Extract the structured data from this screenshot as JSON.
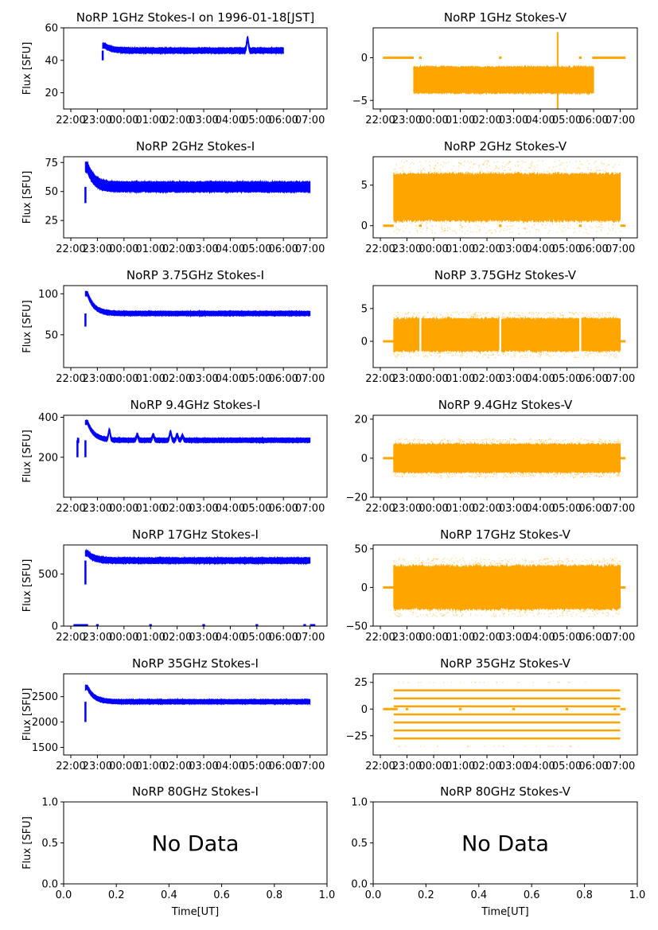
{
  "chart_data": {
    "type": "scatter",
    "layout": "7 rows x 2 columns grid of time series panels",
    "date_label": "1996-01-18[JST]",
    "x_tick_labels": [
      "22:00",
      "23:00",
      "00:00",
      "01:00",
      "02:00",
      "03:00",
      "04:00",
      "05:00",
      "06:00",
      "07:00"
    ],
    "x_range_hours_from_2200": [
      -0.27,
      9.64
    ],
    "xlabel": "Time[UT]",
    "ylabel": "Flux [SFU]",
    "colors": {
      "stokes_i": "#0000ff",
      "stokes_v": "#ffa500"
    },
    "panels": [
      {
        "id": "1ghz-i",
        "title": "NoRP 1GHz Stokes-I on 1996-01-18[JST]",
        "ylim": [
          10,
          60
        ],
        "yticks": [
          20,
          40,
          60
        ],
        "kind": "I",
        "segments": [
          [
            1.2,
            8.0
          ]
        ],
        "base": 46,
        "spread": 1.5,
        "start_dip": 40,
        "peak": 49,
        "bumps": [
          [
            6.65,
            53
          ]
        ],
        "zero_marks": []
      },
      {
        "id": "1ghz-v",
        "title": "NoRP 1GHz Stokes-V",
        "ylim": [
          -6,
          3.5
        ],
        "yticks": [
          -5,
          0
        ],
        "kind": "V",
        "segments": [
          [
            1.25,
            8.0
          ]
        ],
        "base": -2.6,
        "spread": 1.5,
        "spike": [
          6.65,
          -6,
          3
        ],
        "zero_marks": [
          [
            0.1,
            1.25
          ],
          [
            1.45,
            1.55
          ],
          [
            4.45,
            4.55
          ],
          [
            7.45,
            7.55
          ],
          [
            7.95,
            9.2
          ]
        ]
      },
      {
        "id": "2ghz-i",
        "title": "NoRP 2GHz Stokes-I",
        "ylim": [
          10,
          80
        ],
        "yticks": [
          25,
          50,
          75
        ],
        "kind": "I",
        "segments": [
          [
            0.55,
            9.0
          ]
        ],
        "base": 54,
        "spread": 4,
        "start_dip": 40,
        "peak": 71,
        "bumps": [],
        "zero_marks": []
      },
      {
        "id": "2ghz-v",
        "title": "NoRP 2GHz Stokes-V",
        "ylim": [
          -1.5,
          8.5
        ],
        "yticks": [
          0,
          5
        ],
        "kind": "V",
        "segments": [
          [
            0.5,
            9.0
          ]
        ],
        "base": 3.5,
        "spread": 2.8,
        "outer": 4.5,
        "zero_marks": [
          [
            0.1,
            0.5
          ],
          [
            1.45,
            1.55
          ],
          [
            4.45,
            4.55
          ],
          [
            7.45,
            7.55
          ],
          [
            9.0,
            9.2
          ]
        ]
      },
      {
        "id": "3-75ghz-i",
        "title": "NoRP 3.75GHz Stokes-I",
        "ylim": [
          10,
          110
        ],
        "yticks": [
          50,
          100
        ],
        "kind": "I",
        "segments": [
          [
            0.55,
            9.0
          ]
        ],
        "base": 76,
        "spread": 2.5,
        "start_dip": 60,
        "peak": 100,
        "bumps": [],
        "zero_marks": []
      },
      {
        "id": "3-75ghz-v",
        "title": "NoRP 3.75GHz Stokes-V",
        "ylim": [
          -4,
          8.5
        ],
        "yticks": [
          0,
          5
        ],
        "kind": "V",
        "segments": [
          [
            0.5,
            1.45
          ],
          [
            1.55,
            4.45
          ],
          [
            4.55,
            7.45
          ],
          [
            7.55,
            9.0
          ]
        ],
        "base": 1.0,
        "spread": 2.4,
        "outer": 3.5,
        "zero_marks": [
          [
            0.1,
            0.5
          ],
          [
            9.0,
            9.2
          ]
        ]
      },
      {
        "id": "9-4ghz-i",
        "title": "NoRP 9.4GHz Stokes-I",
        "ylim": [
          0,
          410
        ],
        "yticks": [
          200,
          400
        ],
        "kind": "I",
        "segments": [
          [
            0.25,
            0.3
          ],
          [
            0.55,
            9.0
          ]
        ],
        "base": 285,
        "spread": 10,
        "start_dip": 200,
        "peak": 375,
        "bumps": [
          [
            1.45,
            330
          ],
          [
            2.5,
            310
          ],
          [
            3.1,
            310
          ],
          [
            3.75,
            325
          ],
          [
            4.0,
            310
          ],
          [
            4.2,
            305
          ]
        ],
        "zero_marks": []
      },
      {
        "id": "9-4ghz-v",
        "title": "NoRP 9.4GHz Stokes-V",
        "ylim": [
          -20,
          22
        ],
        "yticks": [
          -20,
          0,
          20
        ],
        "kind": "V",
        "segments": [
          [
            0.5,
            9.0
          ]
        ],
        "base": 0,
        "spread": 7,
        "outer": 10,
        "zero_marks": [
          [
            0.1,
            0.5
          ],
          [
            9.0,
            9.2
          ]
        ]
      },
      {
        "id": "17ghz-i",
        "title": "NoRP 17GHz Stokes-I",
        "ylim": [
          0,
          780
        ],
        "yticks": [
          0,
          500
        ],
        "kind": "I",
        "segments": [
          [
            0.55,
            9.0
          ]
        ],
        "base": 630,
        "spread": 25,
        "start_dip": 400,
        "peak": 700,
        "bumps": [],
        "zero_marks": [
          [
            0.1,
            0.65
          ],
          [
            0.95,
            1.05
          ],
          [
            2.95,
            3.05
          ],
          [
            4.95,
            5.05
          ],
          [
            6.95,
            7.05
          ],
          [
            8.75,
            8.85
          ],
          [
            9.0,
            9.2
          ]
        ]
      },
      {
        "id": "17ghz-v",
        "title": "NoRP 17GHz Stokes-V",
        "ylim": [
          -50,
          55
        ],
        "yticks": [
          -50,
          0,
          50
        ],
        "kind": "V",
        "segments": [
          [
            0.5,
            9.0
          ]
        ],
        "base": 0,
        "spread": 27,
        "outer": 38,
        "zero_marks": [
          [
            0.1,
            0.5
          ],
          [
            9.0,
            9.2
          ]
        ]
      },
      {
        "id": "35ghz-i",
        "title": "NoRP 35GHz Stokes-I",
        "ylim": [
          1350,
          2950
        ],
        "yticks": [
          1500,
          2000,
          2500
        ],
        "kind": "I",
        "segments": [
          [
            0.55,
            9.0
          ]
        ],
        "base": 2400,
        "spread": 40,
        "start_dip": 2000,
        "peak": 2680,
        "bumps": [],
        "zero_marks": []
      },
      {
        "id": "35ghz-v",
        "title": "NoRP 35GHz Stokes-V",
        "ylim": [
          -43,
          33
        ],
        "yticks": [
          -25,
          0,
          25
        ],
        "kind": "Vq",
        "segments": [
          [
            0.5,
            9.0
          ]
        ],
        "levels": [
          -27.5,
          -20,
          -12.5,
          -5,
          2.5,
          10,
          17.5
        ],
        "zero_marks": [
          [
            0.1,
            0.65
          ],
          [
            0.95,
            1.05
          ],
          [
            2.95,
            3.05
          ],
          [
            4.95,
            5.05
          ],
          [
            6.95,
            7.05
          ],
          [
            8.75,
            8.85
          ],
          [
            9.0,
            9.2
          ]
        ]
      },
      {
        "id": "80ghz-i",
        "title": "NoRP 80GHz Stokes-I",
        "ylim": [
          0,
          1
        ],
        "yticks": [
          0.0,
          0.5,
          1.0
        ],
        "kind": "none",
        "xticks": [
          "0.0",
          "0.2",
          "0.4",
          "0.6",
          "0.8",
          "1.0"
        ],
        "message": "No Data"
      },
      {
        "id": "80ghz-v",
        "title": "NoRP 80GHz Stokes-V",
        "ylim": [
          0,
          1
        ],
        "yticks": [
          0.0,
          0.5,
          1.0
        ],
        "kind": "none",
        "xticks": [
          "0.0",
          "0.2",
          "0.4",
          "0.6",
          "0.8",
          "1.0"
        ],
        "message": "No Data"
      }
    ]
  }
}
